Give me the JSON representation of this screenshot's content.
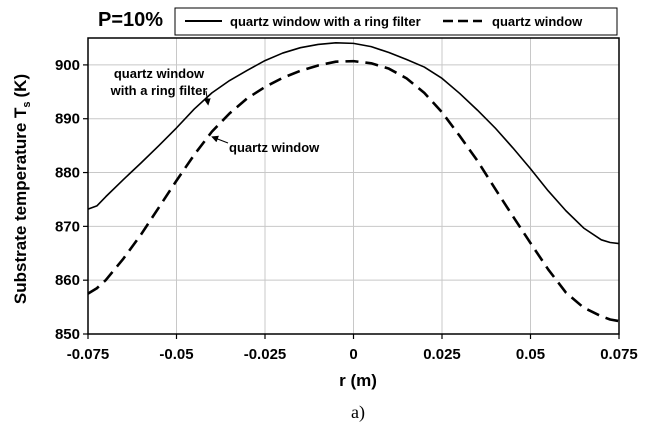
{
  "chart_data": {
    "type": "line",
    "panel_label": "P=10%",
    "caption": "a)",
    "xlabel": "r (m)",
    "ylabel": "Substrate temperature T",
    "ylabel_subscript": "s",
    "ylabel_unit": "(K)",
    "xlim": [
      -0.075,
      0.075
    ],
    "ylim": [
      850,
      905
    ],
    "xticks": [
      "-0.075",
      "-0.05",
      "-0.025",
      "0",
      "0.025",
      "0.05",
      "0.075"
    ],
    "yticks": [
      "850",
      "860",
      "870",
      "880",
      "890",
      "900"
    ],
    "grid": true,
    "legend_position": "top",
    "series": [
      {
        "name": "quartz window with a ring filter",
        "style": "solid",
        "x": [
          -0.075,
          -0.0725,
          -0.07,
          -0.065,
          -0.06,
          -0.055,
          -0.05,
          -0.045,
          -0.04,
          -0.035,
          -0.03,
          -0.025,
          -0.02,
          -0.015,
          -0.01,
          -0.005,
          0,
          0.005,
          0.01,
          0.015,
          0.02,
          0.025,
          0.03,
          0.035,
          0.04,
          0.045,
          0.05,
          0.055,
          0.06,
          0.065,
          0.07,
          0.0725,
          0.075
        ],
        "values": [
          873.2,
          873.8,
          875.5,
          878.7,
          881.8,
          885.0,
          888.3,
          891.8,
          894.8,
          897.1,
          899.0,
          900.8,
          902.2,
          903.2,
          903.8,
          904.1,
          904.0,
          903.4,
          902.3,
          901.0,
          899.6,
          897.5,
          894.7,
          891.6,
          888.3,
          884.6,
          880.7,
          876.6,
          872.9,
          869.7,
          867.5,
          867.0,
          866.8
        ]
      },
      {
        "name": "quartz window",
        "style": "dashed",
        "x": [
          -0.075,
          -0.0725,
          -0.07,
          -0.065,
          -0.06,
          -0.055,
          -0.05,
          -0.045,
          -0.04,
          -0.035,
          -0.03,
          -0.025,
          -0.02,
          -0.015,
          -0.01,
          -0.005,
          0,
          0.005,
          0.01,
          0.015,
          0.02,
          0.025,
          0.03,
          0.035,
          0.04,
          0.045,
          0.05,
          0.055,
          0.06,
          0.065,
          0.07,
          0.0725,
          0.075
        ],
        "values": [
          857.5,
          858.5,
          860.0,
          864.0,
          868.5,
          873.5,
          878.5,
          883.3,
          887.6,
          891.0,
          893.8,
          895.9,
          897.6,
          898.9,
          899.9,
          900.6,
          900.7,
          900.3,
          899.3,
          897.5,
          894.8,
          891.2,
          886.8,
          882.2,
          877.0,
          871.9,
          866.9,
          862.0,
          857.7,
          854.9,
          853.3,
          852.7,
          852.4
        ]
      }
    ],
    "annotations": [
      {
        "text_lines": [
          "quartz window",
          "with a ring filter"
        ],
        "points_to_series": "quartz window with a ring filter",
        "x": -0.0405,
        "y": 893.0
      },
      {
        "text_lines": [
          "quartz window"
        ],
        "points_to_series": "quartz window",
        "x": -0.0405,
        "y": 887.0
      }
    ]
  }
}
